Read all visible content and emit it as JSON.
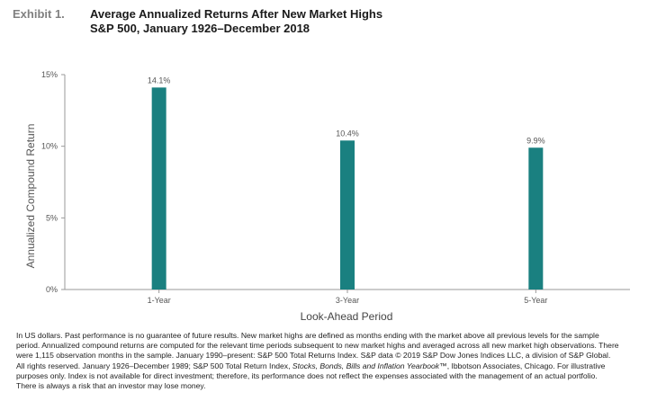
{
  "header": {
    "exhibit": "Exhibit 1.",
    "title": "Average Annualized Returns After New Market Highs",
    "subtitle": "S&P 500, January 1926–December 2018"
  },
  "chart_data": {
    "type": "bar",
    "categories": [
      "1-Year",
      "3-Year",
      "5-Year"
    ],
    "values": [
      14.1,
      10.4,
      9.9
    ],
    "data_labels": [
      "14.1%",
      "10.4%",
      "9.9%"
    ],
    "title": "Average Annualized Returns After New Market Highs",
    "subtitle": "S&P 500, January 1926–December 2018",
    "xlabel": "Look-Ahead Period",
    "ylabel": "Annualized Compound Return",
    "ylim": [
      0,
      15
    ],
    "yticks": [
      0,
      5,
      10,
      15
    ],
    "ytick_labels": [
      "0%",
      "5%",
      "10%",
      "15%"
    ],
    "grid": false,
    "legend": "none",
    "bar_color": "#1a8080"
  },
  "footnote": {
    "line1": "In US dollars. Past performance is no guarantee of future results. New market highs are defined as months ending with the market above all previous levels for the sample",
    "line2": "period. Annualized compound returns are computed for the relevant time periods subsequent to new market highs and averaged across all new market high observations. There",
    "line3": "were 1,115 observation months in the sample. January 1990–present: S&P 500 Total Returns Index. S&P data © 2019 S&P Dow Jones Indices LLC, a division of S&P Global.",
    "line4_pre": "All rights reserved. January 1926–December 1989; S&P 500 Total Return Index, ",
    "line4_italic": "Stocks, Bonds, Bills and Inflation Yearbook",
    "line4_post": "™, Ibbotson Associates, Chicago. For illustrative",
    "line5": "purposes only. Index is not available for direct investment; therefore, its performance does not reflect the expenses associated with the management of an actual portfolio.",
    "line6": "There is always a risk that an investor may lose money."
  }
}
